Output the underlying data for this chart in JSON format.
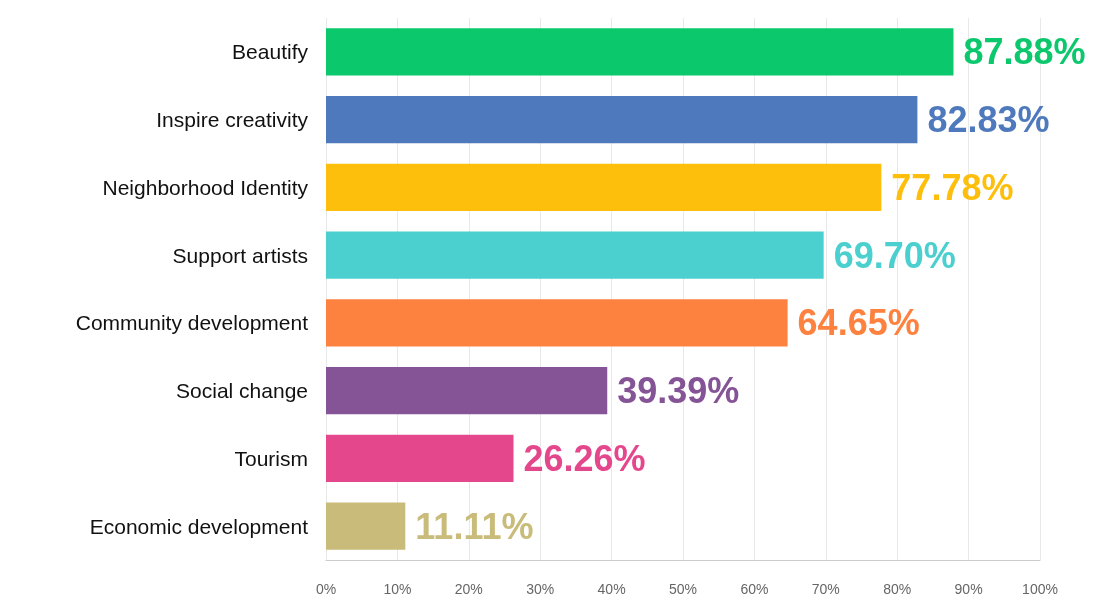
{
  "chart_data": {
    "type": "bar",
    "orientation": "horizontal",
    "categories": [
      "Beautify",
      "Inspire creativity",
      "Neighborhood Identity",
      "Support artists",
      "Community development",
      "Social change",
      "Tourism",
      "Economic development"
    ],
    "values": [
      87.88,
      82.83,
      77.78,
      69.7,
      64.65,
      39.39,
      26.26,
      11.11
    ],
    "colors": [
      "#0bc86c",
      "#4e79bd",
      "#fdbe0c",
      "#4ccfcf",
      "#fd8240",
      "#855496",
      "#e4478c",
      "#c9bb79"
    ],
    "value_labels": [
      "87.88%",
      "82.83%",
      "77.78%",
      "69.70%",
      "64.65%",
      "39.39%",
      "26.26%",
      "11.11%"
    ],
    "xlim": [
      0,
      100
    ],
    "xticks": [
      {
        "value": 0,
        "label": "0%"
      },
      {
        "value": 10,
        "label": "10%"
      },
      {
        "value": 20,
        "label": "20%"
      },
      {
        "value": 30,
        "label": "30%"
      },
      {
        "value": 40,
        "label": "40%"
      },
      {
        "value": 50,
        "label": "50%"
      },
      {
        "value": 60,
        "label": "60%"
      },
      {
        "value": 70,
        "label": "70%"
      },
      {
        "value": 80,
        "label": "80%"
      },
      {
        "value": 90,
        "label": "90%"
      },
      {
        "value": 100,
        "label": "100%"
      }
    ],
    "grid": "x"
  }
}
